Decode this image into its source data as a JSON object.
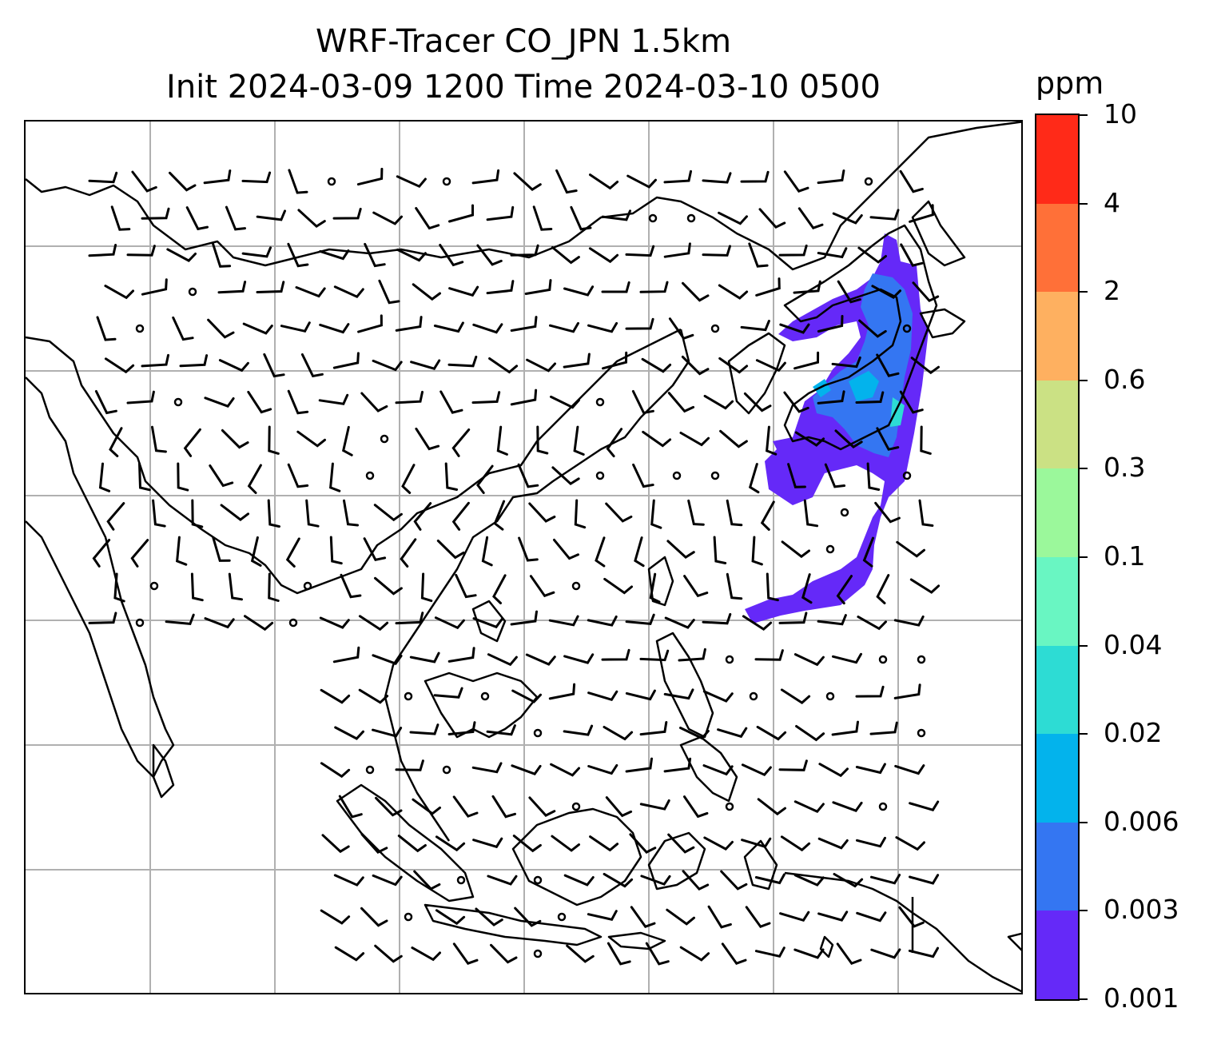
{
  "title": {
    "line1": "WRF-Tracer CO_JPN 1.5km",
    "line2": "Init 2024-03-09 1200 Time 2024-03-10 0500"
  },
  "colorbar": {
    "unit": "ppm",
    "levels": [
      "0.001",
      "0.003",
      "0.006",
      "0.02",
      "0.04",
      "0.1",
      "0.3",
      "0.6",
      "2",
      "4",
      "10"
    ],
    "colors": [
      "#6529f8",
      "#3476f2",
      "#03b3ec",
      "#2ddcd4",
      "#69f6c2",
      "#9bf89b",
      "#cbe184",
      "#feb060",
      "#ff7038",
      "#ff2a18"
    ]
  },
  "map": {
    "style": {
      "coastline_color": "#000000",
      "grid_color": "#b0b0b0",
      "barb_color": "#000000"
    },
    "gridlines": "on",
    "features": [
      "coastlines",
      "country borders",
      "wind barbs",
      "calm-wind circles",
      "CO tracer shading"
    ],
    "plume_region": "off eastern Honshu, Japan, extending south toward Taiwan/Philippine Sea"
  }
}
